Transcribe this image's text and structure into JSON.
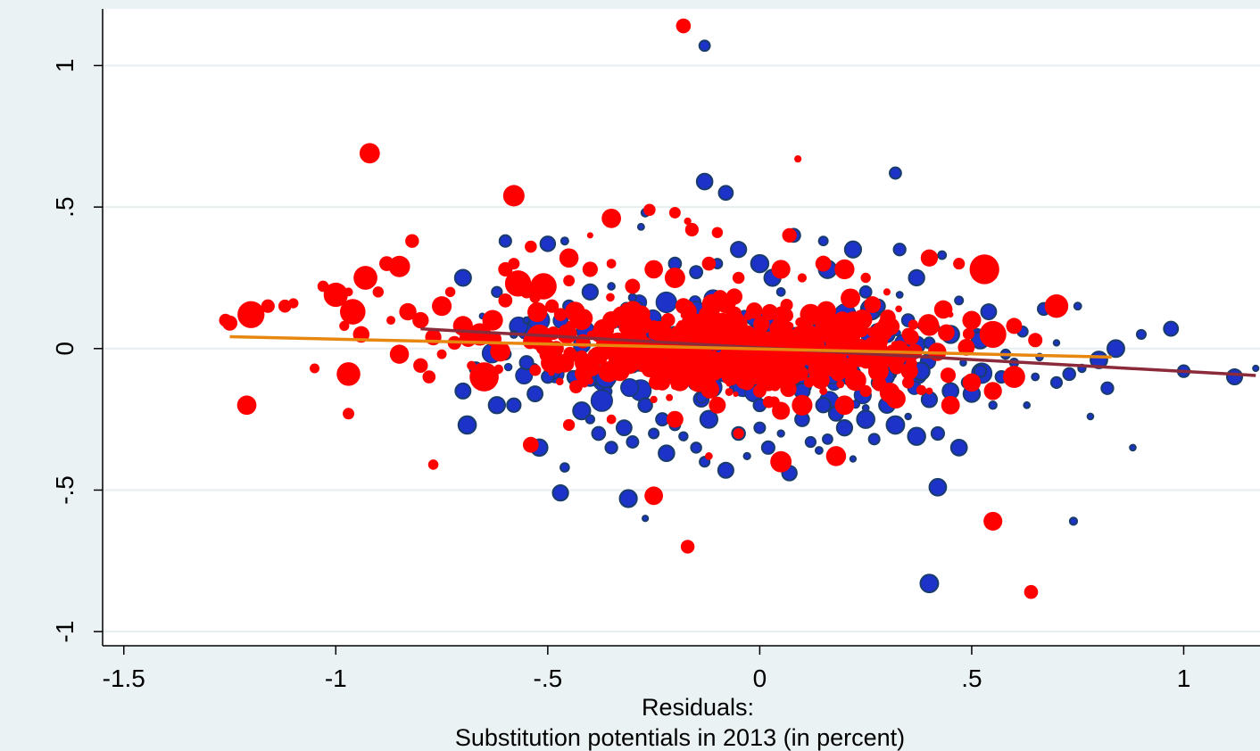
{
  "chart_data": {
    "type": "scatter",
    "title": "",
    "xlabel_lines": [
      "Residuals:",
      "Substitution potentials in 2013 (in percent)"
    ],
    "ylabel": "",
    "xlim": [
      -1.55,
      1.18
    ],
    "ylim": [
      -1.05,
      1.2
    ],
    "x_ticks": [
      {
        "value": -1.5,
        "label": "-1.5"
      },
      {
        "value": -1,
        "label": "-1"
      },
      {
        "value": -0.5,
        "label": "-.5"
      },
      {
        "value": 0,
        "label": "0"
      },
      {
        "value": 0.5,
        "label": ".5"
      },
      {
        "value": 1,
        "label": "1"
      }
    ],
    "y_ticks": [
      {
        "value": -1,
        "label": "-1"
      },
      {
        "value": -0.5,
        "label": "-.5"
      },
      {
        "value": 0,
        "label": "0"
      },
      {
        "value": 0.5,
        "label": ".5"
      },
      {
        "value": 1,
        "label": "1"
      }
    ],
    "grid": "horizontal",
    "legend": "none",
    "colors": {
      "background": "#eaf2f3",
      "plot_background": "#ffffff",
      "grid": "#e6eeef",
      "series_blue_fill": "#1c32c8",
      "series_blue_edge": "#1a3c6b",
      "series_red": "#ff0000",
      "fit_line_blue": "#8b2a3a",
      "fit_line_red": "#e8870f"
    },
    "fit_lines": [
      {
        "series": "blue",
        "x": [
          -0.8,
          1.17
        ],
        "y": [
          0.07,
          -0.095
        ]
      },
      {
        "series": "red",
        "x": [
          -1.25,
          0.83
        ],
        "y": [
          0.042,
          -0.03
        ]
      }
    ],
    "series": [
      {
        "color": "blue",
        "points": [
          [
            -0.13,
            1.07
          ],
          [
            -0.13,
            0.59
          ],
          [
            -0.08,
            0.55
          ],
          [
            0.32,
            0.62
          ],
          [
            -0.6,
            0.38
          ],
          [
            -0.46,
            0.38
          ],
          [
            -0.5,
            0.37
          ],
          [
            -0.27,
            0.48
          ],
          [
            -0.28,
            0.43
          ],
          [
            0.08,
            0.4
          ],
          [
            0.15,
            0.38
          ],
          [
            0.22,
            0.35
          ],
          [
            0.33,
            0.35
          ],
          [
            0.43,
            0.33
          ],
          [
            0.16,
            0.28
          ],
          [
            -0.7,
            0.25
          ],
          [
            -0.62,
            0.2
          ],
          [
            0.37,
            0.25
          ],
          [
            0.33,
            0.19
          ],
          [
            0.47,
            0.17
          ],
          [
            0.54,
            0.13
          ],
          [
            0.67,
            0.14
          ],
          [
            0.75,
            0.15
          ],
          [
            0.9,
            0.05
          ],
          [
            0.97,
            0.07
          ],
          [
            -0.67,
            -0.07
          ],
          [
            -0.7,
            -0.15
          ],
          [
            -0.69,
            -0.27
          ],
          [
            -0.62,
            -0.2
          ],
          [
            -0.58,
            -0.2
          ],
          [
            -0.53,
            -0.16
          ],
          [
            -0.5,
            -0.1
          ],
          [
            -0.48,
            -0.05
          ],
          [
            -0.44,
            -0.1
          ],
          [
            -0.42,
            -0.22
          ],
          [
            -0.4,
            -0.25
          ],
          [
            -0.38,
            -0.3
          ],
          [
            -0.35,
            -0.35
          ],
          [
            -0.32,
            -0.28
          ],
          [
            -0.3,
            -0.33
          ],
          [
            -0.27,
            -0.2
          ],
          [
            -0.25,
            -0.3
          ],
          [
            -0.23,
            -0.25
          ],
          [
            -0.22,
            -0.37
          ],
          [
            -0.2,
            -0.27
          ],
          [
            -0.18,
            -0.31
          ],
          [
            -0.15,
            -0.35
          ],
          [
            -0.13,
            -0.4
          ],
          [
            -0.12,
            -0.25
          ],
          [
            -0.08,
            -0.43
          ],
          [
            -0.05,
            -0.3
          ],
          [
            -0.03,
            -0.38
          ],
          [
            0.0,
            -0.28
          ],
          [
            0.02,
            -0.35
          ],
          [
            0.05,
            -0.3
          ],
          [
            0.07,
            -0.44
          ],
          [
            0.1,
            -0.25
          ],
          [
            0.12,
            -0.33
          ],
          [
            0.14,
            -0.36
          ],
          [
            0.16,
            -0.32
          ],
          [
            0.2,
            -0.29
          ],
          [
            0.22,
            -0.39
          ],
          [
            0.25,
            -0.25
          ],
          [
            0.27,
            -0.32
          ],
          [
            0.3,
            -0.2
          ],
          [
            0.32,
            -0.27
          ],
          [
            0.35,
            -0.24
          ],
          [
            0.37,
            -0.31
          ],
          [
            0.4,
            -0.18
          ],
          [
            0.42,
            -0.3
          ],
          [
            0.45,
            -0.15
          ],
          [
            0.47,
            -0.35
          ],
          [
            0.49,
            -0.12
          ],
          [
            0.5,
            -0.16
          ],
          [
            0.52,
            -0.08
          ],
          [
            0.55,
            -0.2
          ],
          [
            0.57,
            -0.1
          ],
          [
            0.6,
            -0.05
          ],
          [
            0.63,
            -0.2
          ],
          [
            0.65,
            -0.1
          ],
          [
            0.7,
            -0.12
          ],
          [
            0.73,
            -0.09
          ],
          [
            0.76,
            -0.07
          ],
          [
            0.82,
            -0.14
          ],
          [
            0.78,
            -0.24
          ],
          [
            0.88,
            -0.35
          ],
          [
            0.42,
            -0.49
          ],
          [
            0.4,
            -0.83
          ],
          [
            0.74,
            -0.61
          ],
          [
            -0.27,
            -0.6
          ],
          [
            -0.47,
            -0.51
          ],
          [
            -0.31,
            -0.53
          ],
          [
            -0.46,
            -0.42
          ],
          [
            -0.52,
            -0.35
          ],
          [
            0.2,
            -0.28
          ],
          [
            0.25,
            -0.21
          ],
          [
            0.28,
            -0.12
          ],
          [
            0.33,
            -0.05
          ],
          [
            0.3,
            0.05
          ],
          [
            0.35,
            0.1
          ],
          [
            0.4,
            0.02
          ],
          [
            0.38,
            -0.08
          ],
          [
            0.45,
            0.05
          ],
          [
            0.48,
            -0.05
          ],
          [
            0.52,
            0.03
          ],
          [
            0.58,
            -0.02
          ],
          [
            0.62,
            0.06
          ],
          [
            0.66,
            -0.03
          ],
          [
            0.7,
            0.02
          ],
          [
            0.8,
            -0.04
          ],
          [
            0.84,
            0.0
          ],
          [
            1.0,
            -0.08
          ],
          [
            1.17,
            -0.07
          ],
          [
            1.12,
            -0.1
          ],
          [
            0.05,
            0.2
          ],
          [
            0.1,
            0.25
          ],
          [
            0.2,
            0.27
          ],
          [
            0.25,
            0.2
          ],
          [
            0.28,
            0.15
          ],
          [
            -0.1,
            0.3
          ],
          [
            -0.05,
            0.35
          ],
          [
            0.0,
            0.3
          ],
          [
            0.03,
            0.25
          ],
          [
            -0.15,
            0.27
          ],
          [
            -0.2,
            0.3
          ],
          [
            -0.35,
            0.22
          ],
          [
            -0.3,
            0.18
          ],
          [
            -0.4,
            0.2
          ],
          [
            -0.45,
            0.15
          ],
          [
            -0.55,
            0.1
          ],
          [
            -0.58,
            0.05
          ],
          [
            -0.6,
            -0.02
          ],
          [
            -0.55,
            -0.05
          ],
          [
            0.15,
            0.1
          ],
          [
            0.2,
            0.05
          ],
          [
            0.25,
            0.0
          ],
          [
            0.3,
            -0.1
          ],
          [
            -0.1,
            -0.2
          ],
          [
            0.0,
            -0.2
          ],
          [
            0.1,
            -0.15
          ],
          [
            0.15,
            -0.2
          ],
          [
            0.18,
            -0.23
          ]
        ]
      },
      {
        "color": "red",
        "points": [
          [
            -0.18,
            1.14
          ],
          [
            -0.92,
            0.69
          ],
          [
            0.09,
            0.67
          ],
          [
            -0.58,
            0.54
          ],
          [
            -0.26,
            0.49
          ],
          [
            -0.2,
            0.48
          ],
          [
            -0.17,
            0.45
          ],
          [
            -0.35,
            0.46
          ],
          [
            -0.4,
            0.4
          ],
          [
            -0.16,
            0.42
          ],
          [
            -0.1,
            0.41
          ],
          [
            0.07,
            0.4
          ],
          [
            -0.54,
            0.36
          ],
          [
            -0.82,
            0.38
          ],
          [
            -0.88,
            0.3
          ],
          [
            -0.85,
            0.29
          ],
          [
            -0.97,
            0.2
          ],
          [
            -1.0,
            0.19
          ],
          [
            -1.03,
            0.22
          ],
          [
            -1.1,
            0.16
          ],
          [
            -1.12,
            0.15
          ],
          [
            -1.16,
            0.15
          ],
          [
            -1.2,
            0.12
          ],
          [
            -1.26,
            0.1
          ],
          [
            -1.25,
            0.09
          ],
          [
            -0.93,
            0.25
          ],
          [
            -0.9,
            0.2
          ],
          [
            -0.96,
            0.13
          ],
          [
            -0.98,
            0.08
          ],
          [
            -0.94,
            0.05
          ],
          [
            -0.87,
            0.1
          ],
          [
            -0.83,
            0.13
          ],
          [
            -0.8,
            0.1
          ],
          [
            -0.75,
            0.15
          ],
          [
            -0.73,
            0.2
          ],
          [
            -0.7,
            0.08
          ],
          [
            -0.66,
            0.05
          ],
          [
            -0.63,
            0.1
          ],
          [
            -0.6,
            0.17
          ],
          [
            -0.57,
            0.23
          ],
          [
            -0.55,
            0.2
          ],
          [
            -0.5,
            0.25
          ],
          [
            -0.47,
            0.12
          ],
          [
            -0.45,
            0.06
          ],
          [
            -0.42,
            0.02
          ],
          [
            -0.38,
            -0.03
          ],
          [
            -0.35,
            0.1
          ],
          [
            -0.53,
            0.18
          ],
          [
            -0.51,
            0.22
          ],
          [
            -0.49,
            0.15
          ],
          [
            -0.45,
            0.24
          ],
          [
            -0.77,
            0.04
          ],
          [
            -0.75,
            -0.02
          ],
          [
            -0.72,
            0.02
          ],
          [
            -0.68,
            -0.06
          ],
          [
            -0.65,
            -0.1
          ],
          [
            -0.78,
            -0.1
          ],
          [
            -0.8,
            -0.06
          ],
          [
            -0.85,
            -0.02
          ],
          [
            -0.97,
            -0.09
          ],
          [
            -1.21,
            -0.2
          ],
          [
            -0.97,
            -0.23
          ],
          [
            -1.05,
            -0.07
          ],
          [
            -0.77,
            -0.41
          ],
          [
            -0.54,
            -0.34
          ],
          [
            -0.25,
            -0.52
          ],
          [
            -0.17,
            -0.7
          ],
          [
            0.55,
            -0.61
          ],
          [
            0.64,
            -0.86
          ],
          [
            -0.12,
            -0.38
          ],
          [
            0.05,
            -0.4
          ],
          [
            0.18,
            -0.38
          ],
          [
            -0.45,
            -0.27
          ],
          [
            -0.35,
            -0.25
          ],
          [
            -0.25,
            -0.18
          ],
          [
            -0.2,
            -0.25
          ],
          [
            -0.1,
            -0.2
          ],
          [
            -0.05,
            -0.3
          ],
          [
            0.0,
            -0.15
          ],
          [
            0.05,
            -0.22
          ],
          [
            0.1,
            -0.2
          ],
          [
            0.15,
            -0.15
          ],
          [
            0.2,
            -0.2
          ],
          [
            0.25,
            -0.15
          ],
          [
            0.3,
            -0.15
          ],
          [
            0.35,
            -0.12
          ],
          [
            0.4,
            -0.15
          ],
          [
            0.45,
            -0.2
          ],
          [
            0.5,
            -0.12
          ],
          [
            0.55,
            -0.15
          ],
          [
            0.6,
            -0.1
          ],
          [
            0.35,
            0.05
          ],
          [
            0.4,
            0.08
          ],
          [
            0.45,
            0.12
          ],
          [
            0.5,
            0.1
          ],
          [
            0.55,
            0.05
          ],
          [
            0.6,
            0.08
          ],
          [
            0.65,
            0.03
          ],
          [
            0.7,
            0.15
          ],
          [
            0.3,
            0.2
          ],
          [
            0.25,
            0.25
          ],
          [
            0.2,
            0.28
          ],
          [
            0.15,
            0.3
          ],
          [
            0.1,
            0.25
          ],
          [
            0.05,
            0.28
          ],
          [
            -0.05,
            0.25
          ],
          [
            -0.12,
            0.3
          ],
          [
            -0.2,
            0.25
          ],
          [
            -0.25,
            0.28
          ],
          [
            -0.3,
            0.22
          ],
          [
            -0.4,
            0.28
          ],
          [
            -0.35,
            0.3
          ],
          [
            -0.45,
            0.32
          ],
          [
            -0.6,
            0.28
          ],
          [
            -0.58,
            0.3
          ],
          [
            0.4,
            0.32
          ],
          [
            0.47,
            0.3
          ],
          [
            0.53,
            0.28
          ],
          [
            -0.3,
            0.0
          ],
          [
            -0.25,
            0.05
          ],
          [
            -0.22,
            -0.05
          ],
          [
            -0.15,
            0.02
          ],
          [
            -0.1,
            0.08
          ],
          [
            -0.05,
            -0.02
          ],
          [
            0.0,
            0.05
          ],
          [
            0.05,
            -0.05
          ],
          [
            0.1,
            0.02
          ],
          [
            0.15,
            -0.05
          ],
          [
            0.2,
            0.0
          ],
          [
            0.25,
            -0.05
          ],
          [
            -0.28,
            0.12
          ],
          [
            -0.18,
            0.15
          ],
          [
            -0.08,
            0.16
          ],
          [
            0.02,
            0.13
          ],
          [
            0.12,
            0.12
          ],
          [
            0.22,
            0.1
          ],
          [
            -0.33,
            -0.08
          ],
          [
            -0.23,
            -0.12
          ],
          [
            -0.13,
            -0.1
          ],
          [
            -0.03,
            -0.12
          ],
          [
            0.07,
            -0.1
          ],
          [
            0.17,
            -0.08
          ],
          [
            0.27,
            -0.05
          ],
          [
            -0.38,
            0.05
          ],
          [
            -0.42,
            0.1
          ],
          [
            -0.48,
            0.0
          ],
          [
            -0.52,
            0.04
          ],
          [
            0.3,
            0.08
          ],
          [
            0.33,
            0.0
          ],
          [
            0.28,
            -0.08
          ]
        ]
      }
    ]
  }
}
